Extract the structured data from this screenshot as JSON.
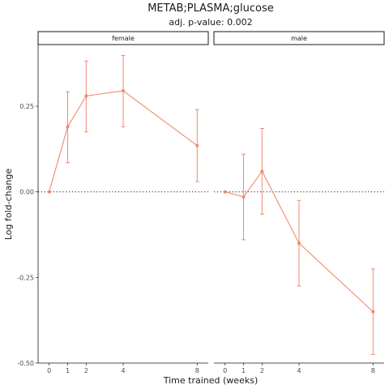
{
  "chart_data": {
    "type": "line",
    "title": "METAB;PLASMA;glucose",
    "subtitle": "adj. p-value: 0.002",
    "xlabel": "Time trained (weeks)",
    "ylabel": "Log fold-change",
    "x_ticks": [
      0,
      1,
      2,
      4,
      8
    ],
    "y_ticks": [
      -0.5,
      -0.25,
      0.0,
      0.25
    ],
    "y_tick_labels": [
      "-0.50",
      "-0.25",
      "0.00",
      "0.25"
    ],
    "ylim": [
      -0.5,
      0.43
    ],
    "xlim": [
      -0.6,
      8.6
    ],
    "reference_line": 0,
    "grid": false,
    "series_color": "#F08A6E",
    "panels": [
      {
        "label": "female",
        "x": [
          0,
          1,
          2,
          4,
          8
        ],
        "y": [
          0.0,
          0.19,
          0.28,
          0.295,
          0.135
        ],
        "lower": [
          0.0,
          0.085,
          0.175,
          0.19,
          0.03
        ],
        "upper": [
          0.0,
          0.292,
          0.382,
          0.398,
          0.24
        ]
      },
      {
        "label": "male",
        "x": [
          0,
          1,
          2,
          4,
          8
        ],
        "y": [
          0.0,
          -0.015,
          0.06,
          -0.15,
          -0.35
        ],
        "lower": [
          0.0,
          -0.14,
          -0.065,
          -0.275,
          -0.475
        ],
        "upper": [
          0.0,
          0.11,
          0.185,
          -0.025,
          -0.225
        ]
      }
    ]
  }
}
